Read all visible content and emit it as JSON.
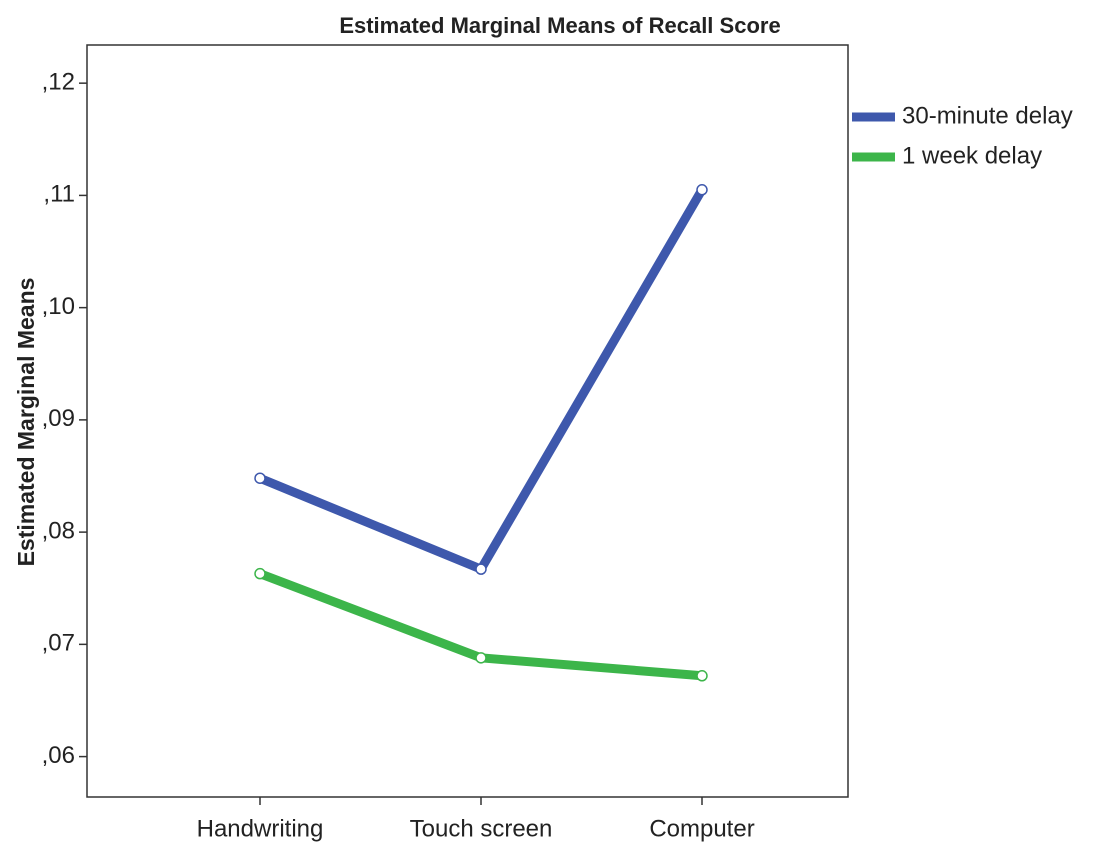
{
  "chart_data": {
    "type": "line",
    "title": "Estimated Marginal Means of Recall Score",
    "y_label": "Estimated Marginal Means",
    "categories": [
      "Handwriting",
      "Touch screen",
      "Computer"
    ],
    "series": [
      {
        "name": "30-minute delay",
        "color": "#3e58ac",
        "values": [
          0.0848,
          0.0767,
          0.1105
        ]
      },
      {
        "name": "1 week delay",
        "color": "#3cb54a",
        "values": [
          0.0763,
          0.0688,
          0.0672
        ]
      }
    ],
    "ylim": [
      0.0564,
      0.1234
    ],
    "yticks": [
      {
        "value": 0.06,
        "label": ",06"
      },
      {
        "value": 0.07,
        "label": ",07"
      },
      {
        "value": 0.08,
        "label": ",08"
      },
      {
        "value": 0.09,
        "label": ",09"
      },
      {
        "value": 0.1,
        "label": ",10"
      },
      {
        "value": 0.11,
        "label": ",11"
      },
      {
        "value": 0.12,
        "label": ",12"
      }
    ]
  }
}
